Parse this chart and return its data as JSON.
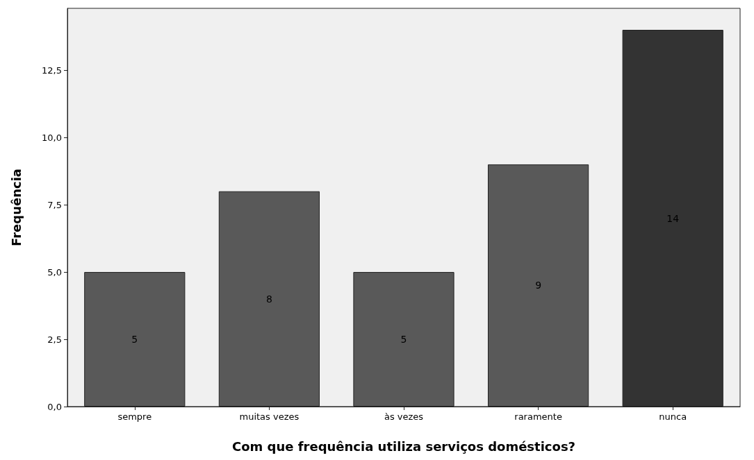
{
  "chart_data": {
    "type": "bar",
    "xlabel": "Com que frequência utiliza serviços domésticos?",
    "ylabel": "Frequência",
    "categories": [
      "sempre",
      "muitas vezes",
      "às vezes",
      "raramente",
      "nunca"
    ],
    "values": [
      5,
      8,
      5,
      9,
      14
    ],
    "colors": [
      "#595959",
      "#595959",
      "#595959",
      "#595959",
      "#333333"
    ],
    "ylim": [
      0,
      14.8
    ],
    "yticks": [
      {
        "value": 0,
        "label": "0,0"
      },
      {
        "value": 2.5,
        "label": "2,5"
      },
      {
        "value": 5,
        "label": "5,0"
      },
      {
        "value": 7.5,
        "label": "7,5"
      },
      {
        "value": 10,
        "label": "10,0"
      },
      {
        "value": 12.5,
        "label": "12,5"
      }
    ],
    "data_labels": true,
    "grid": false
  }
}
